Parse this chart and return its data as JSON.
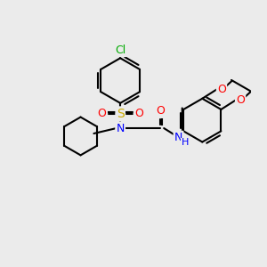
{
  "background_color": "#ebebeb",
  "bond_color": "#000000",
  "bond_width": 1.5,
  "atom_colors": {
    "Cl": "#00aa00",
    "S": "#ccaa00",
    "O": "#ff0000",
    "N": "#0000ff",
    "C": "#000000",
    "H": "#000000"
  },
  "font_size_atom": 9,
  "title": ""
}
